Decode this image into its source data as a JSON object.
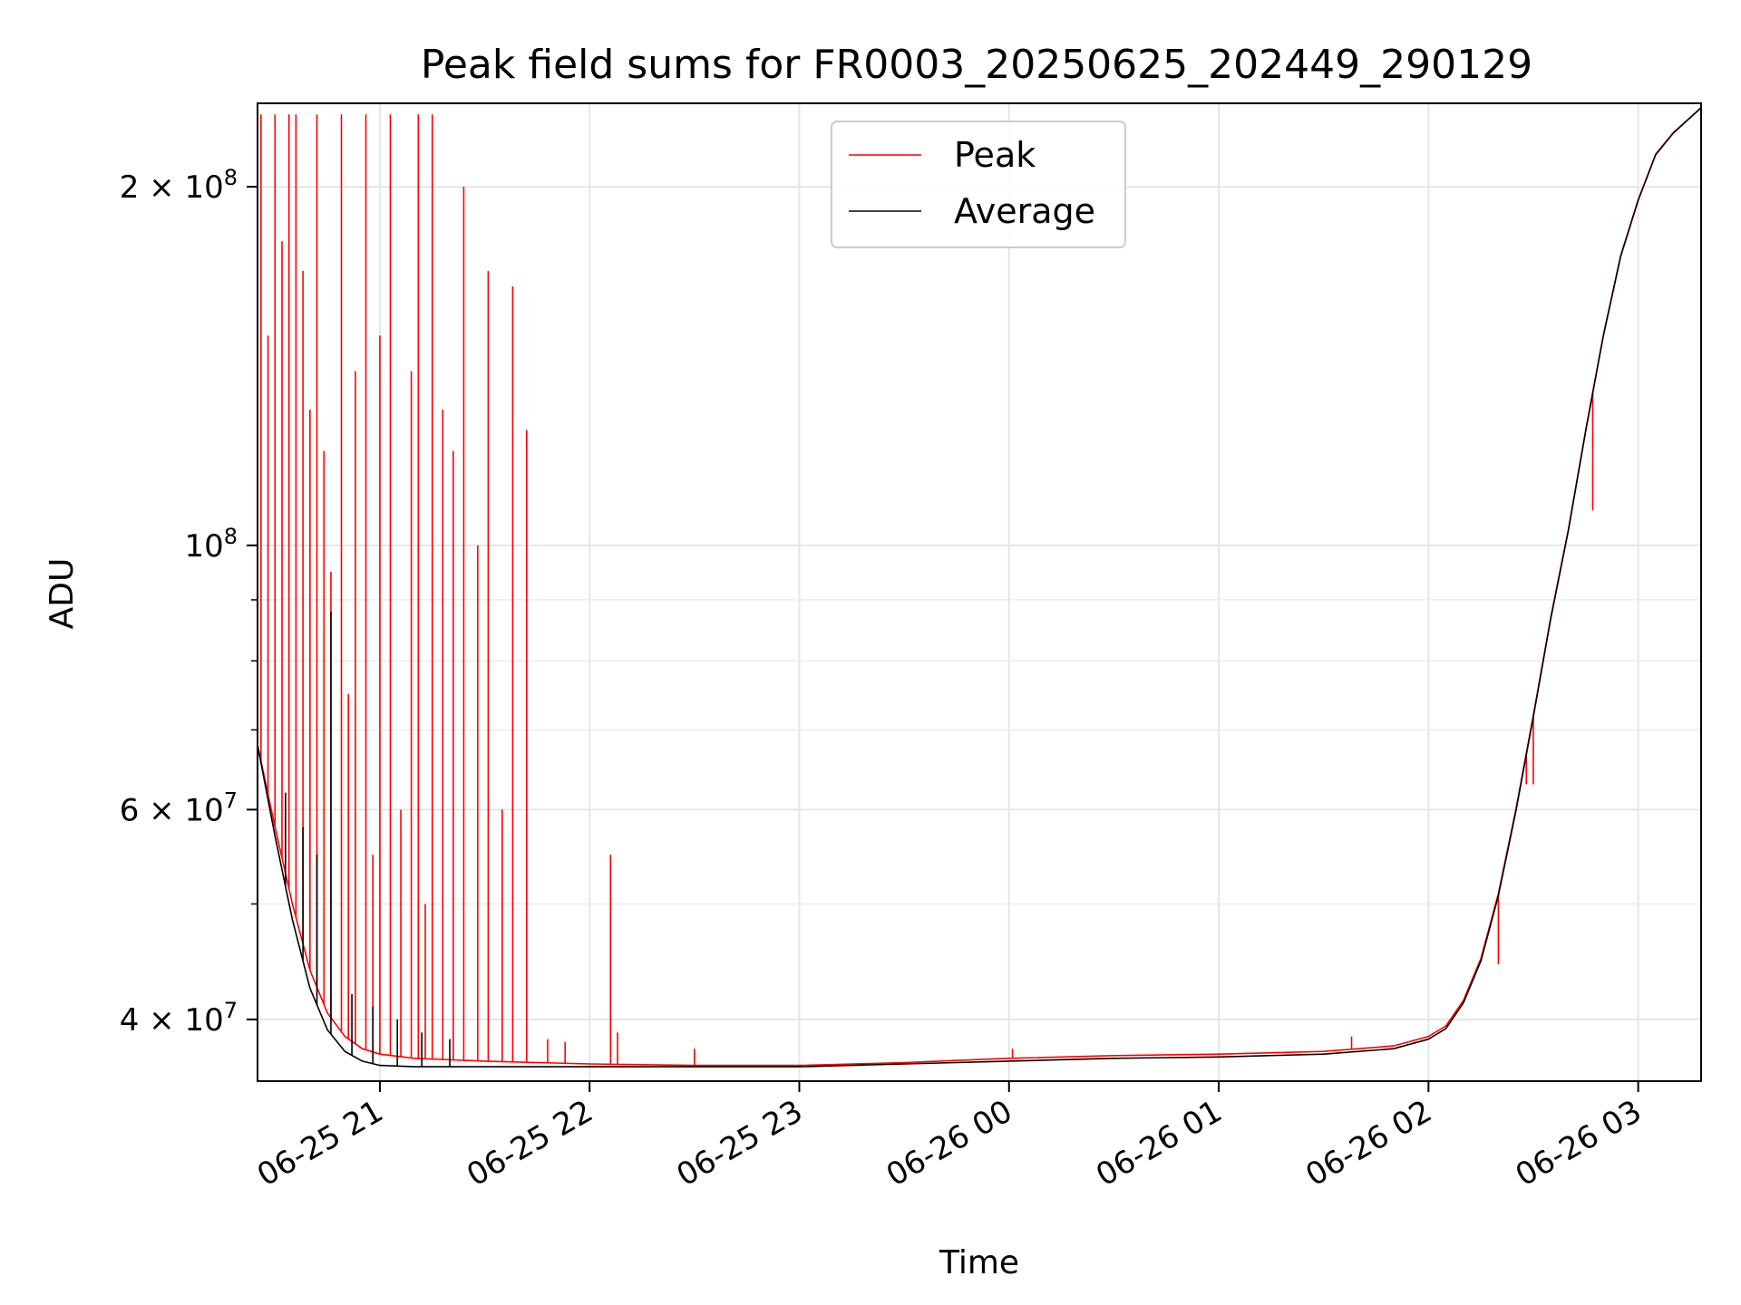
{
  "chart_data": {
    "type": "line",
    "title": "Peak field sums for FR0003_20250625_202449_290129",
    "xlabel": "Time",
    "ylabel": "ADU",
    "yscale": "log",
    "grid": true,
    "legend_position": "upper center",
    "xlim": [
      "2025-06-25 20:25",
      "2025-06-26 03:18"
    ],
    "ylim": [
      35500000,
      235000000
    ],
    "x_ticks": [
      {
        "time": "2025-06-25 21:00",
        "label": "06-25 21"
      },
      {
        "time": "2025-06-25 22:00",
        "label": "06-25 22"
      },
      {
        "time": "2025-06-25 23:00",
        "label": "06-25 23"
      },
      {
        "time": "2025-06-26 00:00",
        "label": "06-26 00"
      },
      {
        "time": "2025-06-26 01:00",
        "label": "06-26 01"
      },
      {
        "time": "2025-06-26 02:00",
        "label": "06-26 02"
      },
      {
        "time": "2025-06-26 03:00",
        "label": "06-26 03"
      }
    ],
    "y_ticks": [
      {
        "value": 40000000,
        "label": "4 × 10",
        "exp": "7"
      },
      {
        "value": 60000000,
        "label": "6 × 10",
        "exp": "7"
      },
      {
        "value": 100000000,
        "label": "10",
        "exp": "8"
      },
      {
        "value": 200000000,
        "label": "2 × 10",
        "exp": "8"
      }
    ],
    "y_minor_ticks": [
      50000000,
      70000000,
      80000000,
      90000000
    ],
    "series": [
      {
        "name": "Peak",
        "color": "#ff0000",
        "points": [
          [
            "2025-06-25 20:25",
            68000000
          ],
          [
            "2025-06-25 20:30",
            58000000
          ],
          [
            "2025-06-25 20:35",
            50000000
          ],
          [
            "2025-06-25 20:40",
            44000000
          ],
          [
            "2025-06-25 20:45",
            40500000
          ],
          [
            "2025-06-25 20:50",
            38700000
          ],
          [
            "2025-06-25 20:55",
            37800000
          ],
          [
            "2025-06-25 21:00",
            37400000
          ],
          [
            "2025-06-25 21:10",
            37100000
          ],
          [
            "2025-06-25 21:30",
            36900000
          ],
          [
            "2025-06-25 22:00",
            36700000
          ],
          [
            "2025-06-25 22:30",
            36600000
          ],
          [
            "2025-06-25 23:00",
            36600000
          ],
          [
            "2025-06-25 23:30",
            36800000
          ],
          [
            "2025-06-26 00:00",
            37100000
          ],
          [
            "2025-06-26 00:30",
            37300000
          ],
          [
            "2025-06-26 01:00",
            37400000
          ],
          [
            "2025-06-26 01:30",
            37600000
          ],
          [
            "2025-06-26 01:50",
            38000000
          ],
          [
            "2025-06-26 02:00",
            38700000
          ],
          [
            "2025-06-26 02:05",
            39500000
          ],
          [
            "2025-06-26 02:10",
            41500000
          ],
          [
            "2025-06-26 02:15",
            45000000
          ],
          [
            "2025-06-26 02:20",
            51000000
          ],
          [
            "2025-06-26 02:25",
            60000000
          ],
          [
            "2025-06-26 02:30",
            72000000
          ],
          [
            "2025-06-26 02:35",
            87000000
          ],
          [
            "2025-06-26 02:40",
            103000000
          ],
          [
            "2025-06-26 02:45",
            125000000
          ],
          [
            "2025-06-26 02:50",
            150000000
          ],
          [
            "2025-06-26 02:55",
            175000000
          ],
          [
            "2025-06-26 03:00",
            195000000
          ],
          [
            "2025-06-26 03:05",
            213000000
          ],
          [
            "2025-06-26 03:10",
            222000000
          ],
          [
            "2025-06-26 03:18",
            233000000
          ]
        ],
        "spikes": [
          [
            "2025-06-25 20:26",
            230000000
          ],
          [
            "2025-06-25 20:28",
            150000000
          ],
          [
            "2025-06-25 20:30",
            230000000
          ],
          [
            "2025-06-25 20:32",
            180000000
          ],
          [
            "2025-06-25 20:34",
            230000000
          ],
          [
            "2025-06-25 20:36",
            230000000
          ],
          [
            "2025-06-25 20:38",
            170000000
          ],
          [
            "2025-06-25 20:40",
            130000000
          ],
          [
            "2025-06-25 20:42",
            230000000
          ],
          [
            "2025-06-25 20:44",
            120000000
          ],
          [
            "2025-06-25 20:46",
            95000000
          ],
          [
            "2025-06-25 20:49",
            230000000
          ],
          [
            "2025-06-25 20:51",
            75000000
          ],
          [
            "2025-06-25 20:53",
            140000000
          ],
          [
            "2025-06-25 20:56",
            230000000
          ],
          [
            "2025-06-25 20:58",
            55000000
          ],
          [
            "2025-06-25 21:00",
            150000000
          ],
          [
            "2025-06-25 21:03",
            230000000
          ],
          [
            "2025-06-25 21:06",
            60000000
          ],
          [
            "2025-06-25 21:09",
            140000000
          ],
          [
            "2025-06-25 21:11",
            230000000
          ],
          [
            "2025-06-25 21:13",
            50000000
          ],
          [
            "2025-06-25 21:15",
            230000000
          ],
          [
            "2025-06-25 21:18",
            130000000
          ],
          [
            "2025-06-25 21:21",
            120000000
          ],
          [
            "2025-06-25 21:24",
            200000000
          ],
          [
            "2025-06-25 21:28",
            100000000
          ],
          [
            "2025-06-25 21:31",
            170000000
          ],
          [
            "2025-06-25 21:35",
            60000000
          ],
          [
            "2025-06-25 21:38",
            165000000
          ],
          [
            "2025-06-25 21:42",
            125000000
          ],
          [
            "2025-06-25 21:48",
            38500000
          ],
          [
            "2025-06-25 21:53",
            38300000
          ],
          [
            "2025-06-25 22:06",
            55000000
          ],
          [
            "2025-06-25 22:08",
            39000000
          ],
          [
            "2025-06-25 22:30",
            37800000
          ],
          [
            "2025-06-26 00:01",
            37800000
          ],
          [
            "2025-06-26 01:38",
            38700000
          ],
          [
            "2025-06-26 02:20",
            44500000
          ],
          [
            "2025-06-26 02:28",
            63000000
          ],
          [
            "2025-06-26 02:30",
            63000000
          ],
          [
            "2025-06-26 02:47",
            107000000
          ]
        ]
      },
      {
        "name": "Average",
        "color": "#000000",
        "points": [
          [
            "2025-06-25 20:25",
            68000000
          ],
          [
            "2025-06-25 20:30",
            57000000
          ],
          [
            "2025-06-25 20:35",
            48500000
          ],
          [
            "2025-06-25 20:40",
            42500000
          ],
          [
            "2025-06-25 20:45",
            39200000
          ],
          [
            "2025-06-25 20:50",
            37600000
          ],
          [
            "2025-06-25 20:55",
            36900000
          ],
          [
            "2025-06-25 21:00",
            36600000
          ],
          [
            "2025-06-25 21:10",
            36500000
          ],
          [
            "2025-06-25 21:30",
            36500000
          ],
          [
            "2025-06-25 22:00",
            36500000
          ],
          [
            "2025-06-25 22:30",
            36500000
          ],
          [
            "2025-06-25 23:00",
            36500000
          ],
          [
            "2025-06-25 23:30",
            36700000
          ],
          [
            "2025-06-26 00:00",
            36900000
          ],
          [
            "2025-06-26 00:30",
            37100000
          ],
          [
            "2025-06-26 01:00",
            37200000
          ],
          [
            "2025-06-26 01:30",
            37400000
          ],
          [
            "2025-06-26 01:50",
            37800000
          ],
          [
            "2025-06-26 02:00",
            38500000
          ],
          [
            "2025-06-26 02:05",
            39300000
          ],
          [
            "2025-06-26 02:10",
            41300000
          ],
          [
            "2025-06-26 02:15",
            44800000
          ],
          [
            "2025-06-26 02:20",
            50800000
          ],
          [
            "2025-06-26 02:25",
            59800000
          ],
          [
            "2025-06-26 02:30",
            71800000
          ],
          [
            "2025-06-26 02:35",
            86800000
          ],
          [
            "2025-06-26 02:40",
            102800000
          ],
          [
            "2025-06-26 02:45",
            124800000
          ],
          [
            "2025-06-26 02:50",
            149800000
          ],
          [
            "2025-06-26 02:55",
            174800000
          ],
          [
            "2025-06-26 03:00",
            194800000
          ],
          [
            "2025-06-26 03:05",
            212800000
          ],
          [
            "2025-06-26 03:10",
            221800000
          ],
          [
            "2025-06-26 03:18",
            233000000
          ]
        ],
        "spikes": [
          [
            "2025-06-25 20:33",
            62000000
          ],
          [
            "2025-06-25 20:38",
            58000000
          ],
          [
            "2025-06-25 20:42",
            55000000
          ],
          [
            "2025-06-25 20:46",
            88000000
          ],
          [
            "2025-06-25 20:52",
            42000000
          ],
          [
            "2025-06-25 20:58",
            41000000
          ],
          [
            "2025-06-25 21:05",
            40000000
          ],
          [
            "2025-06-25 21:12",
            39000000
          ],
          [
            "2025-06-25 21:20",
            38500000
          ]
        ]
      }
    ]
  }
}
